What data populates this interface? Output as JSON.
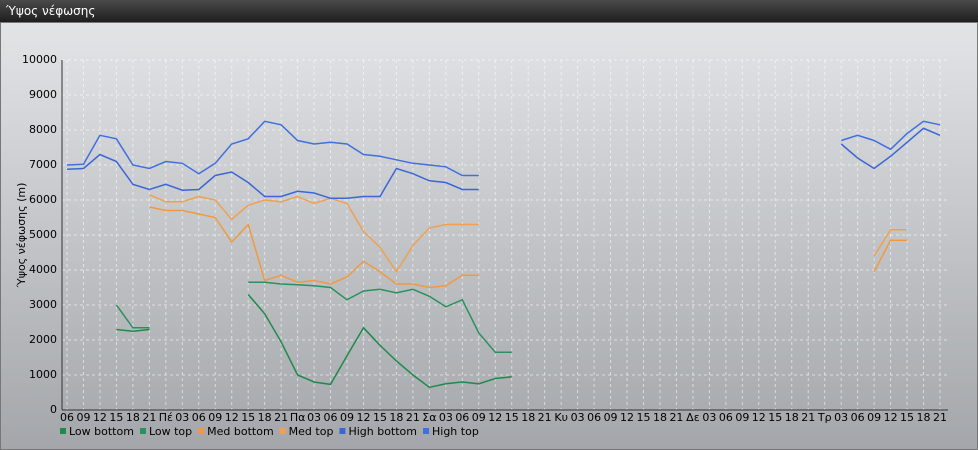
{
  "window_title": "Ύψος νέφωσης",
  "chart_data": {
    "type": "line",
    "y_label": "Ύψος νέφωσης (m)",
    "categories": [
      "06",
      "09",
      "12",
      "15",
      "18",
      "21",
      "Πέ",
      "03",
      "06",
      "09",
      "12",
      "15",
      "18",
      "21",
      "Πα",
      "03",
      "06",
      "09",
      "12",
      "15",
      "18",
      "21",
      "Σα",
      "03",
      "06",
      "09",
      "12",
      "15",
      "18",
      "21",
      "Κυ",
      "03",
      "06",
      "09",
      "12",
      "15",
      "18",
      "21",
      "Δε",
      "03",
      "06",
      "09",
      "12",
      "15",
      "18",
      "21",
      "Τρ",
      "03",
      "06",
      "09",
      "12",
      "15",
      "18",
      "21"
    ],
    "ylim": [
      0,
      10000
    ],
    "yticks": [
      0,
      1000,
      2000,
      3000,
      4000,
      5000,
      6000,
      7000,
      8000,
      9000,
      10000
    ],
    "grid": true,
    "legend": "bottom-left",
    "series": [
      {
        "name": "Low bottom",
        "color": "#1f8a4c",
        "values": [
          null,
          null,
          null,
          2300,
          2250,
          2300,
          null,
          null,
          null,
          null,
          null,
          3300,
          2750,
          1950,
          1000,
          800,
          730,
          1550,
          2350,
          1850,
          1400,
          1000,
          650,
          750,
          800,
          750,
          900,
          950,
          null,
          null,
          null,
          null,
          null,
          null,
          null,
          null,
          null,
          null,
          null,
          null,
          null,
          null,
          null,
          null,
          null,
          null,
          null,
          null,
          null,
          null,
          null,
          null,
          null,
          null
        ]
      },
      {
        "name": "Low top",
        "color": "#2a9060",
        "values": [
          null,
          null,
          null,
          3000,
          2350,
          2350,
          null,
          null,
          null,
          null,
          null,
          3650,
          3650,
          3600,
          3580,
          3550,
          3500,
          3150,
          3400,
          3450,
          3350,
          3450,
          3250,
          2950,
          3150,
          2200,
          1650,
          1650,
          null,
          null,
          null,
          null,
          null,
          null,
          null,
          null,
          null,
          null,
          null,
          null,
          null,
          null,
          null,
          null,
          null,
          null,
          null,
          null,
          null,
          null,
          null,
          null,
          null,
          null
        ]
      },
      {
        "name": "Med bottom",
        "color": "#f09a40",
        "values": [
          null,
          null,
          null,
          null,
          null,
          5800,
          5700,
          5700,
          5600,
          5500,
          4800,
          5300,
          3700,
          3850,
          3650,
          3700,
          3600,
          3800,
          4250,
          3950,
          3600,
          3600,
          3500,
          3550,
          3850,
          3850,
          null,
          null,
          null,
          null,
          null,
          null,
          null,
          null,
          null,
          null,
          null,
          null,
          null,
          null,
          null,
          null,
          null,
          null,
          null,
          null,
          null,
          null,
          null,
          3950,
          4850,
          4850,
          null,
          null
        ]
      },
      {
        "name": "Med top",
        "color": "#f0a050",
        "values": [
          null,
          null,
          null,
          null,
          null,
          6150,
          5950,
          5950,
          6100,
          6000,
          5450,
          5850,
          6000,
          5950,
          6100,
          5900,
          6050,
          5900,
          5100,
          4650,
          3950,
          4700,
          5200,
          5300,
          5300,
          5300,
          null,
          null,
          null,
          null,
          null,
          null,
          null,
          null,
          null,
          null,
          null,
          null,
          null,
          null,
          null,
          null,
          null,
          null,
          null,
          null,
          null,
          null,
          null,
          4400,
          5150,
          5150,
          null,
          null
        ]
      },
      {
        "name": "High bottom",
        "color": "#3a66d6",
        "values": [
          6880,
          6900,
          7300,
          7100,
          6450,
          6300,
          6450,
          6280,
          6300,
          6700,
          6800,
          6500,
          6100,
          6100,
          6250,
          6200,
          6050,
          6050,
          6100,
          6100,
          6900,
          6750,
          6550,
          6500,
          6300,
          6300,
          null,
          null,
          null,
          null,
          null,
          null,
          null,
          null,
          null,
          null,
          null,
          null,
          null,
          null,
          null,
          null,
          null,
          null,
          null,
          null,
          null,
          7600,
          7200,
          6900,
          7250,
          7650,
          8050,
          7850
        ]
      },
      {
        "name": "High top",
        "color": "#3f6fe0",
        "values": [
          7000,
          7020,
          7850,
          7750,
          7000,
          6900,
          7100,
          7050,
          6750,
          7050,
          7600,
          7750,
          8250,
          8150,
          7700,
          7600,
          7650,
          7600,
          7300,
          7250,
          7150,
          7050,
          7000,
          6950,
          6700,
          6700,
          null,
          null,
          null,
          null,
          null,
          null,
          null,
          null,
          null,
          null,
          null,
          null,
          null,
          null,
          null,
          null,
          null,
          null,
          null,
          null,
          null,
          7700,
          7850,
          7700,
          7450,
          7900,
          8250,
          8150
        ]
      }
    ]
  }
}
